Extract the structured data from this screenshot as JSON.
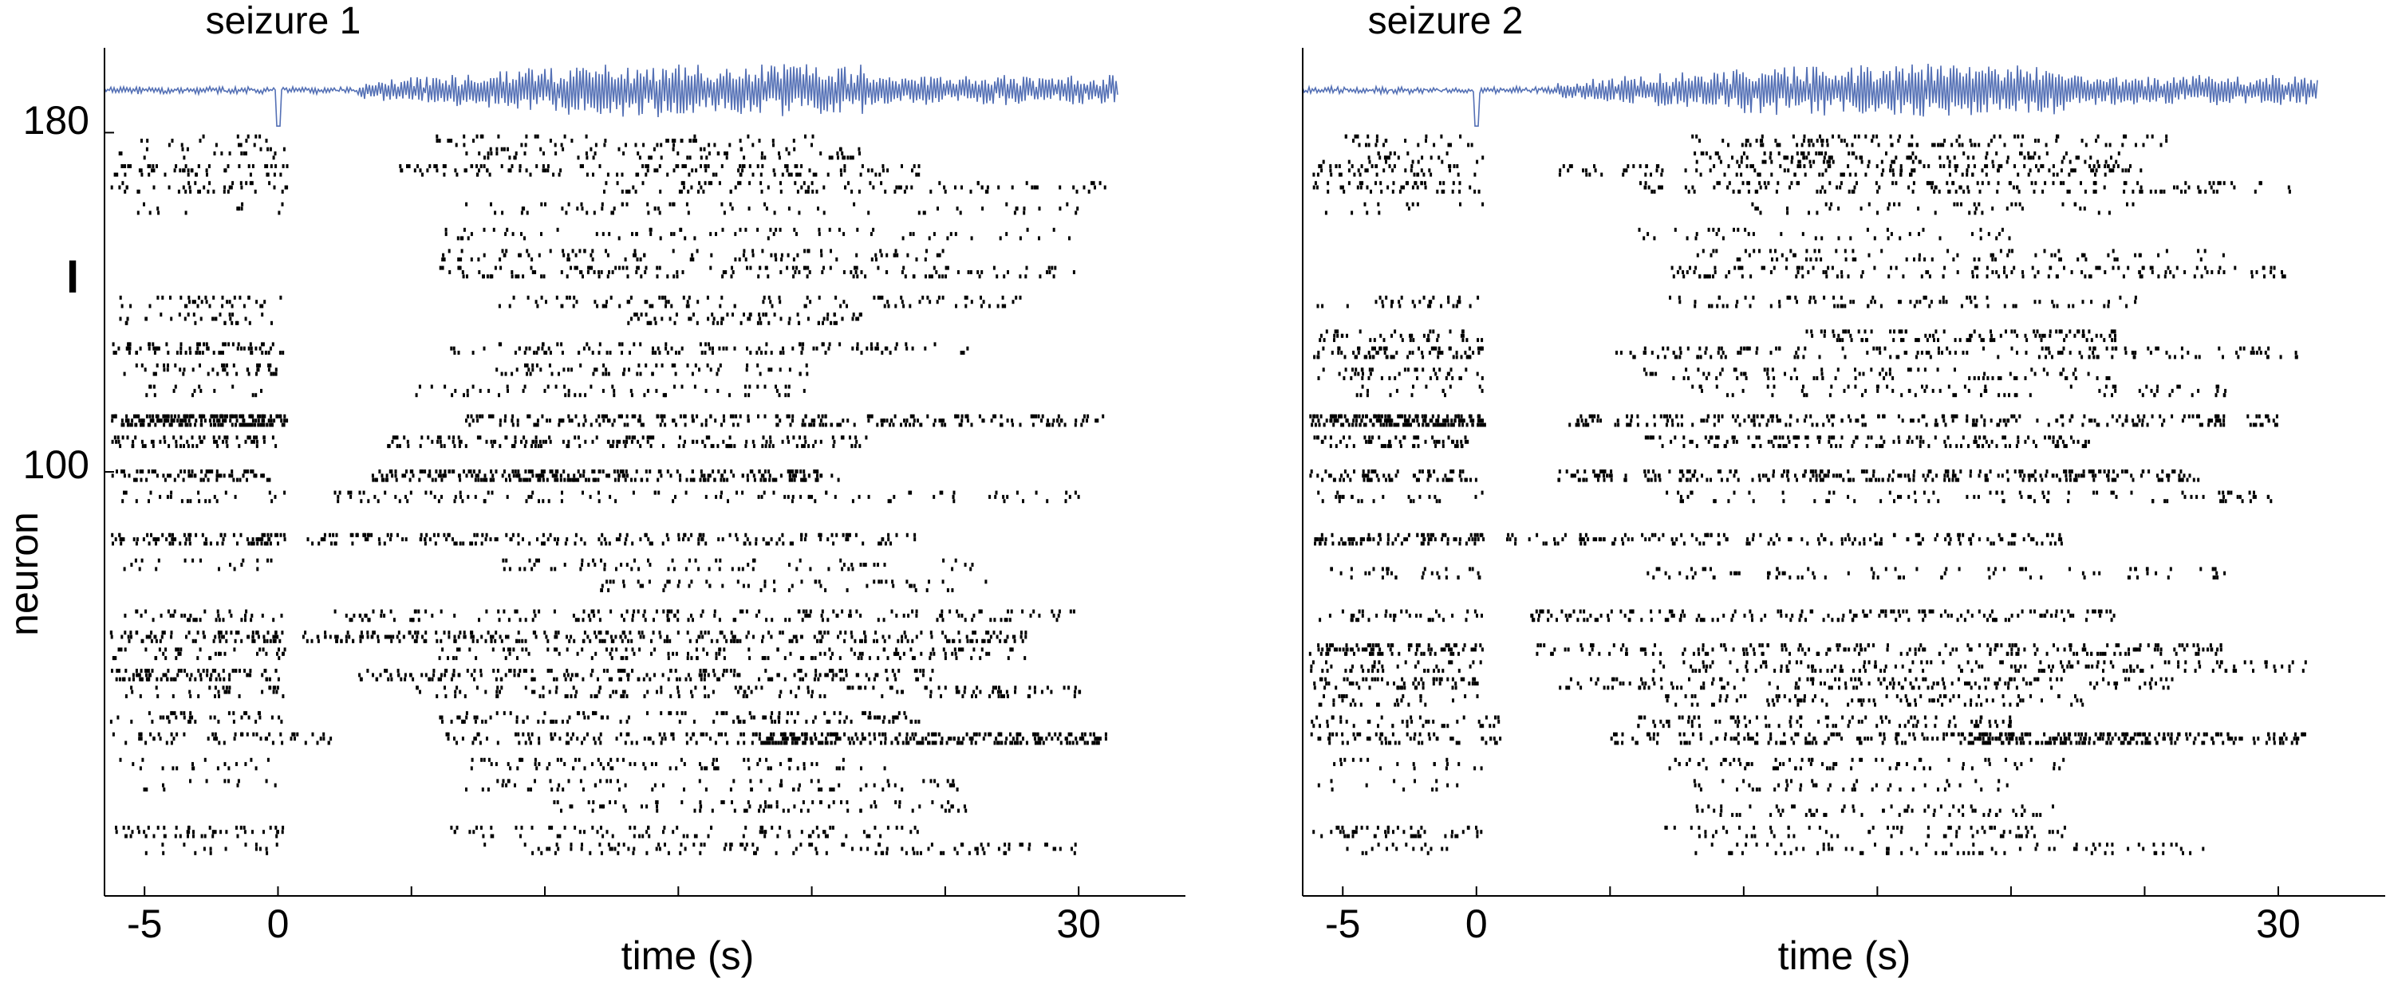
{
  "figure": {
    "ylabel": "neuron",
    "yticks": [
      180,
      100
    ],
    "inset_label": "I"
  },
  "colors": {
    "eeg_trace": "#5470b5",
    "spike": "#000000",
    "axis": "#000000"
  },
  "chart_data": [
    {
      "type": "scatter",
      "title": "seizure 1",
      "xlabel": "time (s)",
      "ylabel": "neuron",
      "xlim": [
        -6.5,
        34
      ],
      "ylim": [
        0,
        200
      ],
      "xticks": [
        -5,
        0,
        30
      ],
      "yticks": [
        180,
        100
      ],
      "grid": false,
      "legend": "none",
      "overlay_trace": {
        "name": "EEG",
        "x_range": [
          -6.5,
          31.5
        ],
        "y_level": 190
      },
      "raster_intervals": [
        {
          "neuron": 178,
          "t0": -5.5,
          "t1": 0.2,
          "d": 0.3
        },
        {
          "neuron": 178,
          "t0": 5.5,
          "t1": 20,
          "d": 0.4
        },
        {
          "neuron": 175,
          "t0": -6,
          "t1": 0.2,
          "d": 0.3
        },
        {
          "neuron": 175,
          "t0": 7,
          "t1": 22,
          "d": 0.5
        },
        {
          "neuron": 171,
          "t0": -6.3,
          "t1": 0.3,
          "d": 0.8
        },
        {
          "neuron": 171,
          "t0": 4.5,
          "t1": 24,
          "d": 0.7
        },
        {
          "neuron": 167,
          "t0": -6.3,
          "t1": 0.3,
          "d": 0.6
        },
        {
          "neuron": 167,
          "t0": 12,
          "t1": 31,
          "d": 0.5
        },
        {
          "neuron": 162,
          "t0": -6,
          "t1": 0.2,
          "d": 0.2
        },
        {
          "neuron": 162,
          "t0": 7,
          "t1": 30,
          "d": 0.3
        },
        {
          "neuron": 156,
          "t0": 6,
          "t1": 30,
          "d": 0.3
        },
        {
          "neuron": 151,
          "t0": 6,
          "t1": 25,
          "d": 0.5
        },
        {
          "neuron": 147,
          "t0": 6,
          "t1": 30,
          "d": 0.6
        },
        {
          "neuron": 140,
          "t0": -6,
          "t1": 0.2,
          "d": 0.6
        },
        {
          "neuron": 140,
          "t0": 8,
          "t1": 28,
          "d": 0.5
        },
        {
          "neuron": 136,
          "t0": -6,
          "t1": 0.2,
          "d": 0.5
        },
        {
          "neuron": 136,
          "t0": 13,
          "t1": 22,
          "d": 0.8
        },
        {
          "neuron": 129,
          "t0": -6.3,
          "t1": 0.2,
          "d": 1.2
        },
        {
          "neuron": 129,
          "t0": 6,
          "t1": 26,
          "d": 0.6
        },
        {
          "neuron": 124,
          "t0": -6,
          "t1": 0.2,
          "d": 0.7
        },
        {
          "neuron": 124,
          "t0": 7,
          "t1": 20,
          "d": 0.5
        },
        {
          "neuron": 119,
          "t0": -5,
          "t1": 0.2,
          "d": 0.3
        },
        {
          "neuron": 119,
          "t0": 5,
          "t1": 20,
          "d": 0.4
        },
        {
          "neuron": 112,
          "t0": -6.3,
          "t1": 0.3,
          "d": 3
        },
        {
          "neuron": 112,
          "t0": 7,
          "t1": 31,
          "d": 1
        },
        {
          "neuron": 107,
          "t0": -6.3,
          "t1": 0,
          "d": 1
        },
        {
          "neuron": 107,
          "t0": 4,
          "t1": 22,
          "d": 0.9
        },
        {
          "neuron": 99,
          "t0": -6.3,
          "t1": 0,
          "d": 1.2
        },
        {
          "neuron": 99,
          "t0": 3.5,
          "t1": 21,
          "d": 1.6
        },
        {
          "neuron": 94,
          "t0": -6,
          "t1": 0.2,
          "d": 0.4
        },
        {
          "neuron": 94,
          "t0": 2,
          "t1": 30,
          "d": 0.4
        },
        {
          "neuron": 84,
          "t0": -6.3,
          "t1": 0.3,
          "d": 1.3
        },
        {
          "neuron": 84,
          "t0": 1,
          "t1": 24,
          "d": 0.8
        },
        {
          "neuron": 78,
          "t0": -6,
          "t1": 0.2,
          "d": 0.3
        },
        {
          "neuron": 78,
          "t0": 8,
          "t1": 26,
          "d": 0.4
        },
        {
          "neuron": 73,
          "t0": 12,
          "t1": 27,
          "d": 0.4
        },
        {
          "neuron": 66,
          "t0": -6,
          "t1": 0.2,
          "d": 0.6
        },
        {
          "neuron": 66,
          "t0": 2,
          "t1": 30,
          "d": 0.6
        },
        {
          "neuron": 61,
          "t0": -6.3,
          "t1": 0.2,
          "d": 1.2
        },
        {
          "neuron": 61,
          "t0": 0.5,
          "t1": 28,
          "d": 1
        },
        {
          "neuron": 57,
          "t0": -6.3,
          "t1": 0.3,
          "d": 0.6
        },
        {
          "neuron": 57,
          "t0": 6,
          "t1": 28,
          "d": 0.6
        },
        {
          "neuron": 52,
          "t0": -6.3,
          "t1": 0,
          "d": 1.4
        },
        {
          "neuron": 52,
          "t0": 3,
          "t1": 25,
          "d": 0.9
        },
        {
          "neuron": 48,
          "t0": -6,
          "t1": 0.2,
          "d": 0.5
        },
        {
          "neuron": 48,
          "t0": 5,
          "t1": 30,
          "d": 0.6
        },
        {
          "neuron": 42,
          "t0": -6.3,
          "t1": 0.3,
          "d": 0.6
        },
        {
          "neuron": 42,
          "t0": 6,
          "t1": 24,
          "d": 0.7
        },
        {
          "neuron": 37,
          "t0": -6.3,
          "t1": 2,
          "d": 0.7
        },
        {
          "neuron": 37,
          "t0": 6,
          "t1": 20,
          "d": 0.8
        },
        {
          "neuron": 37,
          "t0": 18,
          "t1": 31,
          "d": 1.8
        },
        {
          "neuron": 31,
          "t0": -6,
          "t1": 0.2,
          "d": 0.3
        },
        {
          "neuron": 31,
          "t0": 7,
          "t1": 23,
          "d": 0.5
        },
        {
          "neuron": 26,
          "t0": -6,
          "t1": 0.2,
          "d": 0.2
        },
        {
          "neuron": 26,
          "t0": 7,
          "t1": 26,
          "d": 0.4
        },
        {
          "neuron": 21,
          "t0": 10,
          "t1": 26,
          "d": 0.5
        },
        {
          "neuron": 15,
          "t0": -6.3,
          "t1": 0.2,
          "d": 0.8
        },
        {
          "neuron": 15,
          "t0": 6,
          "t1": 24,
          "d": 0.5
        },
        {
          "neuron": 11,
          "t0": -5,
          "t1": 0.2,
          "d": 0.3
        },
        {
          "neuron": 11,
          "t0": 7,
          "t1": 30,
          "d": 0.5
        }
      ]
    },
    {
      "type": "scatter",
      "title": "seizure 2",
      "xlabel": "time (s)",
      "ylabel": "",
      "xlim": [
        -6.5,
        34
      ],
      "ylim": [
        0,
        200
      ],
      "xticks": [
        -5,
        0,
        30
      ],
      "yticks": [],
      "grid": false,
      "legend": "none",
      "overlay_trace": {
        "name": "EEG",
        "x_range": [
          -6.5,
          31.5
        ],
        "y_level": 190
      },
      "raster_intervals": [
        {
          "neuron": 178,
          "t0": -5,
          "t1": 0.2,
          "d": 0.5
        },
        {
          "neuron": 178,
          "t0": 8,
          "t1": 26,
          "d": 0.6
        },
        {
          "neuron": 174,
          "t0": -6,
          "t1": 0.2,
          "d": 0.4
        },
        {
          "neuron": 174,
          "t0": 8,
          "t1": 24,
          "d": 0.7
        },
        {
          "neuron": 171,
          "t0": -6.3,
          "t1": 0.3,
          "d": 0.7
        },
        {
          "neuron": 171,
          "t0": 3,
          "t1": 25,
          "d": 0.7
        },
        {
          "neuron": 167,
          "t0": -6.3,
          "t1": 0.3,
          "d": 0.7
        },
        {
          "neuron": 167,
          "t0": 6,
          "t1": 31,
          "d": 0.6
        },
        {
          "neuron": 162,
          "t0": -6,
          "t1": 0.2,
          "d": 0.2
        },
        {
          "neuron": 162,
          "t0": 10,
          "t1": 25,
          "d": 0.3
        },
        {
          "neuron": 156,
          "t0": 6,
          "t1": 20,
          "d": 0.3
        },
        {
          "neuron": 151,
          "t0": 8,
          "t1": 28,
          "d": 0.4
        },
        {
          "neuron": 147,
          "t0": 7,
          "t1": 31,
          "d": 0.6
        },
        {
          "neuron": 140,
          "t0": -6,
          "t1": 0.2,
          "d": 0.6
        },
        {
          "neuron": 140,
          "t0": 7,
          "t1": 25,
          "d": 0.5
        },
        {
          "neuron": 132,
          "t0": -6,
          "t1": 0.2,
          "d": 0.7
        },
        {
          "neuron": 132,
          "t0": 12,
          "t1": 24,
          "d": 0.9
        },
        {
          "neuron": 128,
          "t0": -6.3,
          "t1": 0.2,
          "d": 1.2
        },
        {
          "neuron": 128,
          "t0": 5,
          "t1": 31,
          "d": 0.6
        },
        {
          "neuron": 123,
          "t0": -6,
          "t1": 0.2,
          "d": 0.7
        },
        {
          "neuron": 123,
          "t0": 6,
          "t1": 24,
          "d": 0.5
        },
        {
          "neuron": 119,
          "t0": -5,
          "t1": 0.2,
          "d": 0.3
        },
        {
          "neuron": 119,
          "t0": 8,
          "t1": 28,
          "d": 0.4
        },
        {
          "neuron": 112,
          "t0": -6.3,
          "t1": 0.3,
          "d": 3
        },
        {
          "neuron": 112,
          "t0": 3,
          "t1": 30,
          "d": 0.9
        },
        {
          "neuron": 107,
          "t0": -6.3,
          "t1": 0,
          "d": 1
        },
        {
          "neuron": 107,
          "t0": 6,
          "t1": 23,
          "d": 0.9
        },
        {
          "neuron": 99,
          "t0": -6.3,
          "t1": 0,
          "d": 1.2
        },
        {
          "neuron": 99,
          "t0": 3,
          "t1": 27,
          "d": 1.2
        },
        {
          "neuron": 94,
          "t0": -6,
          "t1": 0.2,
          "d": 0.4
        },
        {
          "neuron": 94,
          "t0": 7,
          "t1": 30,
          "d": 0.4
        },
        {
          "neuron": 84,
          "t0": -6.3,
          "t1": 0.3,
          "d": 1.3
        },
        {
          "neuron": 84,
          "t0": 1,
          "t1": 22,
          "d": 0.8
        },
        {
          "neuron": 76,
          "t0": -6,
          "t1": 0.2,
          "d": 0.5
        },
        {
          "neuron": 76,
          "t0": 6,
          "t1": 28,
          "d": 0.4
        },
        {
          "neuron": 66,
          "t0": -6,
          "t1": 0.2,
          "d": 0.6
        },
        {
          "neuron": 66,
          "t0": 2,
          "t1": 24,
          "d": 0.8
        },
        {
          "neuron": 58,
          "t0": -6.3,
          "t1": 0.3,
          "d": 1.3
        },
        {
          "neuron": 58,
          "t0": 2,
          "t1": 28,
          "d": 0.8
        },
        {
          "neuron": 54,
          "t0": -6.3,
          "t1": 0.3,
          "d": 0.6
        },
        {
          "neuron": 54,
          "t0": 6,
          "t1": 31,
          "d": 0.6
        },
        {
          "neuron": 50,
          "t0": -6.3,
          "t1": 0,
          "d": 1
        },
        {
          "neuron": 50,
          "t0": 3,
          "t1": 26,
          "d": 0.7
        },
        {
          "neuron": 46,
          "t0": -6,
          "t1": 0.2,
          "d": 0.5
        },
        {
          "neuron": 46,
          "t0": 7,
          "t1": 23,
          "d": 0.6
        },
        {
          "neuron": 41,
          "t0": -6.3,
          "t1": 0.8,
          "d": 0.6
        },
        {
          "neuron": 41,
          "t0": 6,
          "t1": 20,
          "d": 0.7
        },
        {
          "neuron": 37,
          "t0": -6.3,
          "t1": 1,
          "d": 0.8
        },
        {
          "neuron": 37,
          "t0": 5,
          "t1": 20,
          "d": 0.9
        },
        {
          "neuron": 37,
          "t0": 18,
          "t1": 31,
          "d": 1.6
        },
        {
          "neuron": 31,
          "t0": -6,
          "t1": 0.2,
          "d": 0.3
        },
        {
          "neuron": 31,
          "t0": 7,
          "t1": 22,
          "d": 0.5
        },
        {
          "neuron": 26,
          "t0": -6,
          "t1": 0.2,
          "d": 0.2
        },
        {
          "neuron": 26,
          "t0": 8,
          "t1": 20,
          "d": 0.4
        },
        {
          "neuron": 20,
          "t0": 8,
          "t1": 22,
          "d": 0.5
        },
        {
          "neuron": 15,
          "t0": -6.3,
          "t1": 0.2,
          "d": 0.8
        },
        {
          "neuron": 15,
          "t0": 7,
          "t1": 22,
          "d": 0.5
        },
        {
          "neuron": 11,
          "t0": -5,
          "t1": 0.2,
          "d": 0.3
        },
        {
          "neuron": 11,
          "t0": 8,
          "t1": 28,
          "d": 0.4
        }
      ]
    }
  ]
}
